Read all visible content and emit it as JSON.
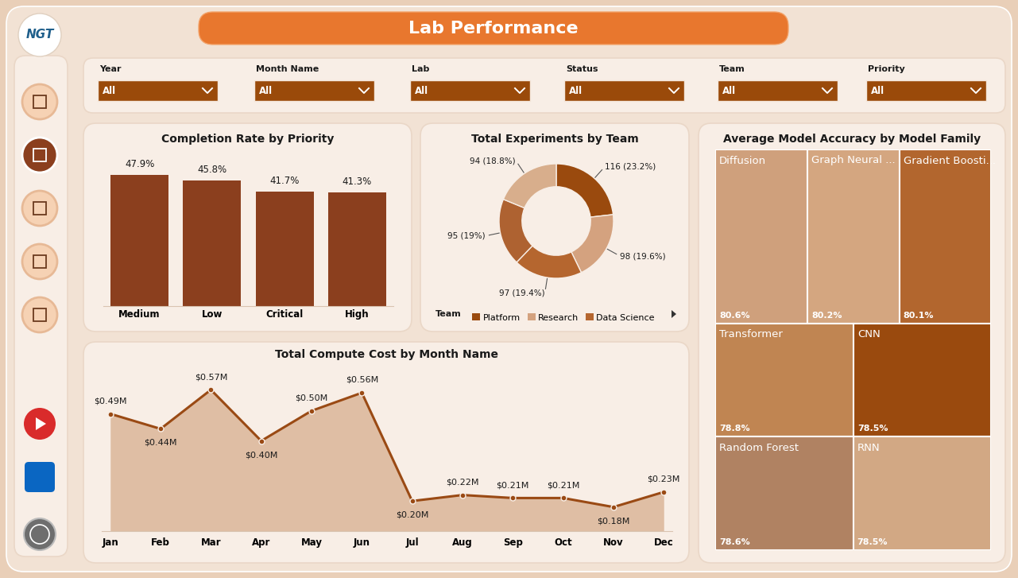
{
  "header": {
    "logo": "NGT",
    "title": "Lab Performance"
  },
  "filters": [
    {
      "label": "Year",
      "value": "All"
    },
    {
      "label": "Month Name",
      "value": "All"
    },
    {
      "label": "Lab",
      "value": "All"
    },
    {
      "label": "Status",
      "value": "All"
    },
    {
      "label": "Team",
      "value": "All"
    },
    {
      "label": "Priority",
      "value": "All"
    }
  ],
  "chart_data": [
    {
      "type": "bar",
      "title": "Completion Rate by Priority",
      "categories": [
        "Medium",
        "Low",
        "Critical",
        "High"
      ],
      "values": [
        47.9,
        45.8,
        41.7,
        41.3
      ],
      "value_labels": [
        "47.9%",
        "45.8%",
        "41.7%",
        "41.3%"
      ],
      "color": "#8B3F1E",
      "ylim": [
        0,
        55
      ],
      "data_labels": true,
      "tick_labels": "x"
    },
    {
      "type": "donut",
      "title": "Total Experiments by Team",
      "categories": [
        "Platform",
        "Research",
        "Data Science",
        null,
        null
      ],
      "values": [
        116,
        98,
        97,
        95,
        94
      ],
      "value_labels": [
        "116 (23.2%)",
        "98 (19.6%)",
        "97 (19.4%)",
        "95 (19%)",
        "94 (18.8%)"
      ],
      "colors": [
        "#9A4A0E",
        "#D4A27F",
        "#B5662F",
        "#AE6231",
        "#D8AE8C"
      ],
      "legend": "upper center",
      "legend_title": "Team",
      "data_labels": true,
      "tick_labels": false
    },
    {
      "type": "treemap",
      "title": "Average Model Accuracy by Model Family",
      "categories": [
        "Diffusion",
        "Graph Neural ...",
        "Gradient Boosti...",
        "Transformer",
        "CNN",
        "Random Forest",
        "RNN"
      ],
      "values": [
        80.6,
        80.2,
        80.1,
        78.8,
        78.5,
        78.6,
        78.5
      ],
      "value_labels": [
        "80.6%",
        "80.2%",
        "80.1%",
        "78.8%",
        "78.5%",
        "78.6%",
        "78.5%"
      ],
      "colors": [
        "#CFA07C",
        "#D4A680",
        "#B2662E",
        "#C08552",
        "#9A4A0E",
        "#B08262",
        "#D2A884"
      ],
      "data_labels": true,
      "tick_labels": false
    },
    {
      "type": "area",
      "title": "Total Compute Cost by Month Name",
      "categories": [
        "Jan",
        "Feb",
        "Mar",
        "Apr",
        "May",
        "Jun",
        "Jul",
        "Aug",
        "Sep",
        "Oct",
        "Nov",
        "Dec"
      ],
      "values": [
        0.49,
        0.44,
        0.57,
        0.4,
        0.5,
        0.56,
        0.2,
        0.22,
        0.21,
        0.21,
        0.18,
        0.23
      ],
      "value_labels": [
        "$0.49M",
        "$0.44M",
        "$0.57M",
        "$0.40M",
        "$0.50M",
        "$0.56M",
        "$0.20M",
        "$0.22M",
        "$0.21M",
        "$0.21M",
        "$0.18M",
        "$0.23M"
      ],
      "color": "#9A4A14",
      "marker": "o",
      "ylim": [
        0.1,
        0.65
      ],
      "data_labels": true,
      "tick_labels": "x"
    }
  ]
}
